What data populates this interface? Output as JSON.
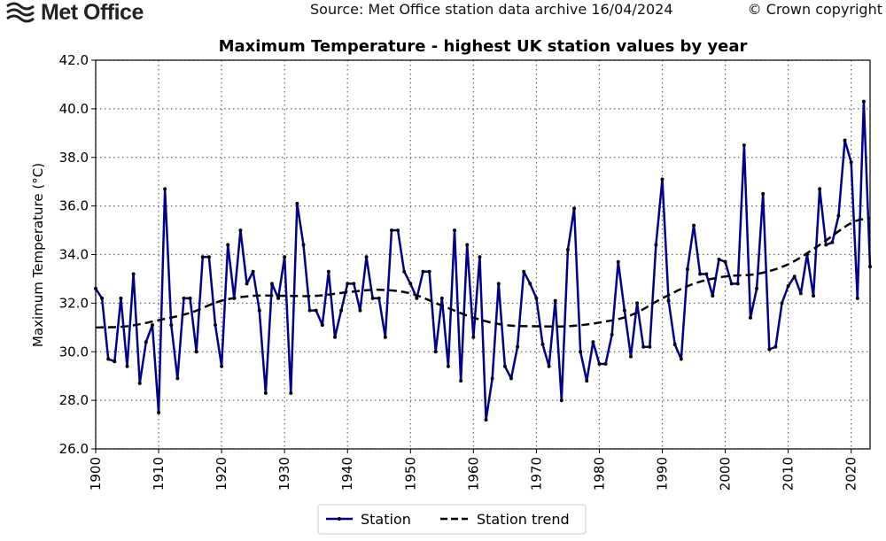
{
  "header": {
    "logo_text": "Met Office",
    "source": "Source: Met Office station data archive 16/04/2024",
    "copyright": "© Crown copyright"
  },
  "chart_data": {
    "type": "line",
    "title": "Maximum Temperature - highest UK station values by year",
    "xlabel": "",
    "ylabel": "Maximum Temperature (°C)",
    "xlim": [
      1900,
      2023
    ],
    "ylim": [
      26,
      42
    ],
    "xticks": [
      "1900",
      "1910",
      "1920",
      "1930",
      "1940",
      "1950",
      "1960",
      "1970",
      "1980",
      "1990",
      "2000",
      "2010",
      "2020"
    ],
    "yticks": [
      "26.0",
      "28.0",
      "30.0",
      "32.0",
      "34.0",
      "36.0",
      "38.0",
      "40.0",
      "42.0"
    ],
    "grid": true,
    "legend_position": "bottom-center",
    "series": [
      {
        "name": "Station",
        "color": "#00008b",
        "style": "solid line with point markers",
        "x_start": 1900,
        "values": [
          32.6,
          32.2,
          29.7,
          29.6,
          32.2,
          29.4,
          33.2,
          28.7,
          30.4,
          31.1,
          27.5,
          36.7,
          31.1,
          28.9,
          32.2,
          32.2,
          30.0,
          33.9,
          33.9,
          31.1,
          29.4,
          34.4,
          32.2,
          35.0,
          32.8,
          33.3,
          31.7,
          28.3,
          32.8,
          32.2,
          33.9,
          28.3,
          36.1,
          34.4,
          31.7,
          31.7,
          31.1,
          33.3,
          30.6,
          31.7,
          32.8,
          32.8,
          31.7,
          33.9,
          32.2,
          32.2,
          30.6,
          35.0,
          35.0,
          33.3,
          32.8,
          32.2,
          33.3,
          33.3,
          30.0,
          32.2,
          29.4,
          35.0,
          28.8,
          34.4,
          30.6,
          33.9,
          27.2,
          28.9,
          32.8,
          29.4,
          28.9,
          30.2,
          33.3,
          32.8,
          32.2,
          30.3,
          29.4,
          32.1,
          28.0,
          34.2,
          35.9,
          30.0,
          28.8,
          30.4,
          29.5,
          29.5,
          30.7,
          33.7,
          31.7,
          29.8,
          32.0,
          30.2,
          30.2,
          34.4,
          37.1,
          32.1,
          30.3,
          29.7,
          33.4,
          35.2,
          33.2,
          33.2,
          32.3,
          33.8,
          33.7,
          32.8,
          32.8,
          38.5,
          31.4,
          32.6,
          36.5,
          30.1,
          30.2,
          32.0,
          32.7,
          33.1,
          32.4,
          34.0,
          32.3,
          36.7,
          34.4,
          34.5,
          35.6,
          38.7,
          37.8,
          32.2,
          40.3,
          33.5
        ]
      },
      {
        "name": "Station trend",
        "color": "#000000",
        "style": "dashed",
        "x": [
          1900,
          1905,
          1910,
          1915,
          1920,
          1925,
          1930,
          1935,
          1940,
          1945,
          1950,
          1955,
          1960,
          1965,
          1970,
          1975,
          1980,
          1985,
          1990,
          1995,
          2000,
          2005,
          2010,
          2015,
          2020,
          2023
        ],
        "values": [
          31.0,
          31.05,
          31.3,
          31.6,
          32.1,
          32.3,
          32.3,
          32.3,
          32.45,
          32.55,
          32.4,
          31.9,
          31.4,
          31.1,
          31.05,
          31.05,
          31.2,
          31.5,
          32.2,
          32.8,
          33.1,
          33.2,
          33.6,
          34.4,
          35.3,
          35.5
        ]
      }
    ]
  }
}
